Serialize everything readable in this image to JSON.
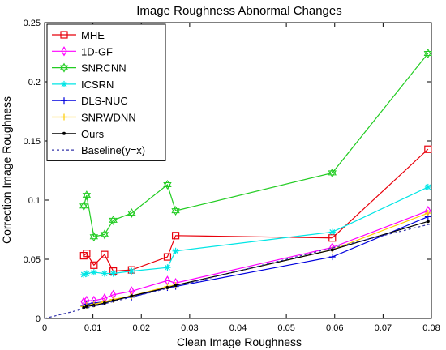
{
  "chart_data": {
    "type": "line",
    "title": "Image Roughness Abnormal Changes",
    "xlabel": "Clean Image Roughness",
    "ylabel": "Correction Image Roughness",
    "xlim": [
      0,
      0.08
    ],
    "ylim": [
      0,
      0.25
    ],
    "x_ticks": [
      "0",
      "0.01",
      "0.02",
      "0.03",
      "0.04",
      "0.05",
      "0.06",
      "0.07",
      "0.08"
    ],
    "y_ticks": [
      "0",
      "0.05",
      "0.1",
      "0.15",
      "0.2",
      "0.25"
    ],
    "grid": false,
    "legend_position": "top-left",
    "series": [
      {
        "name": "MHE",
        "color": "#e8000b",
        "marker": "square",
        "x": [
          0.0081,
          0.0087,
          0.0102,
          0.0124,
          0.0142,
          0.018,
          0.0254,
          0.0271,
          0.0595,
          0.0793
        ],
        "y": [
          0.053,
          0.055,
          0.045,
          0.054,
          0.04,
          0.041,
          0.052,
          0.07,
          0.068,
          0.143
        ]
      },
      {
        "name": "1D-GF",
        "color": "#ff00ff",
        "marker": "diamond",
        "x": [
          0.0081,
          0.0087,
          0.0102,
          0.0124,
          0.0142,
          0.018,
          0.0254,
          0.0271,
          0.0595,
          0.0793
        ],
        "y": [
          0.014,
          0.015,
          0.015,
          0.017,
          0.02,
          0.023,
          0.032,
          0.03,
          0.06,
          0.091
        ]
      },
      {
        "name": "SNRCNN",
        "color": "#22cc22",
        "marker": "hexagram",
        "x": [
          0.0081,
          0.0087,
          0.0102,
          0.0124,
          0.0142,
          0.018,
          0.0254,
          0.0271,
          0.0595,
          0.0793
        ],
        "y": [
          0.095,
          0.104,
          0.069,
          0.071,
          0.083,
          0.089,
          0.113,
          0.091,
          0.123,
          0.224
        ]
      },
      {
        "name": "ICSRN",
        "color": "#00e5e5",
        "marker": "star",
        "x": [
          0.0081,
          0.0087,
          0.0102,
          0.0124,
          0.0142,
          0.018,
          0.0254,
          0.0271,
          0.0595,
          0.0793
        ],
        "y": [
          0.037,
          0.038,
          0.039,
          0.038,
          0.038,
          0.04,
          0.043,
          0.057,
          0.073,
          0.111
        ]
      },
      {
        "name": "DLS-NUC",
        "color": "#0000dd",
        "marker": "plus",
        "x": [
          0.0081,
          0.0087,
          0.0102,
          0.0124,
          0.0142,
          0.018,
          0.0254,
          0.0271,
          0.0595,
          0.0793
        ],
        "y": [
          0.011,
          0.012,
          0.013,
          0.014,
          0.016,
          0.018,
          0.026,
          0.027,
          0.052,
          0.086
        ]
      },
      {
        "name": "SNRWDNN",
        "color": "#ffcc00",
        "marker": "plus",
        "x": [
          0.0081,
          0.0087,
          0.0102,
          0.0124,
          0.0142,
          0.018,
          0.0254,
          0.0271,
          0.0595,
          0.0793
        ],
        "y": [
          0.01,
          0.011,
          0.012,
          0.014,
          0.016,
          0.019,
          0.027,
          0.028,
          0.058,
          0.089
        ]
      },
      {
        "name": "Ours",
        "color": "#000000",
        "marker": "dot",
        "x": [
          0.0081,
          0.0087,
          0.0102,
          0.0124,
          0.0142,
          0.018,
          0.0254,
          0.0271,
          0.0595,
          0.0793
        ],
        "y": [
          0.009,
          0.01,
          0.011,
          0.013,
          0.015,
          0.019,
          0.026,
          0.028,
          0.058,
          0.082
        ]
      },
      {
        "name": "Baseline(y=x)",
        "color": "#3333aa",
        "marker": "none",
        "dashed": true,
        "x": [
          0,
          0.08
        ],
        "y": [
          0,
          0.08
        ]
      }
    ]
  }
}
